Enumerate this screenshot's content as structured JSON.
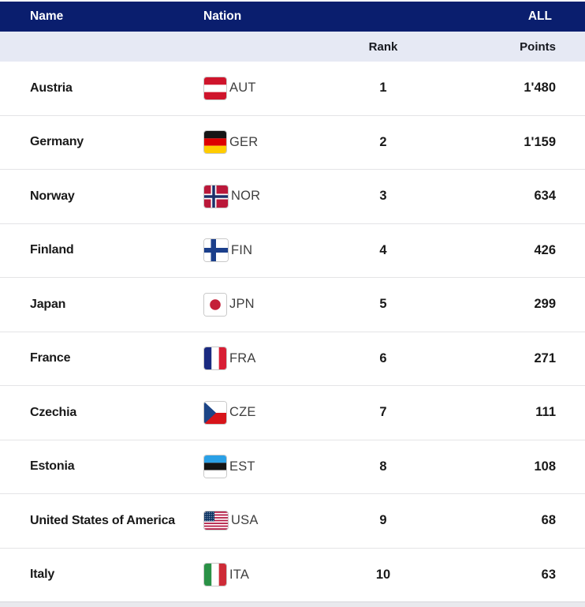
{
  "table": {
    "header": {
      "name": "Name",
      "nation": "Nation",
      "group": "ALL"
    },
    "subheader": {
      "rank": "Rank",
      "points": "Points"
    },
    "rows": [
      {
        "name": "Austria",
        "code": "AUT",
        "flag_icon": "flag-aut-icon",
        "rank": "1",
        "points": "1'480"
      },
      {
        "name": "Germany",
        "code": "GER",
        "flag_icon": "flag-ger-icon",
        "rank": "2",
        "points": "1'159"
      },
      {
        "name": "Norway",
        "code": "NOR",
        "flag_icon": "flag-nor-icon",
        "rank": "3",
        "points": "634"
      },
      {
        "name": "Finland",
        "code": "FIN",
        "flag_icon": "flag-fin-icon",
        "rank": "4",
        "points": "426"
      },
      {
        "name": "Japan",
        "code": "JPN",
        "flag_icon": "flag-jpn-icon",
        "rank": "5",
        "points": "299"
      },
      {
        "name": "France",
        "code": "FRA",
        "flag_icon": "flag-fra-icon",
        "rank": "6",
        "points": "271"
      },
      {
        "name": "Czechia",
        "code": "CZE",
        "flag_icon": "flag-cze-icon",
        "rank": "7",
        "points": "111"
      },
      {
        "name": "Estonia",
        "code": "EST",
        "flag_icon": "flag-est-icon",
        "rank": "8",
        "points": "108"
      },
      {
        "name": "United States of America",
        "code": "USA",
        "flag_icon": "flag-usa-icon",
        "rank": "9",
        "points": "68"
      },
      {
        "name": "Italy",
        "code": "ITA",
        "flag_icon": "flag-ita-icon",
        "rank": "10",
        "points": "63"
      }
    ]
  },
  "colors": {
    "header_bg": "#0a1e6e",
    "header_text": "#ffffff",
    "subheader_bg": "#e6e9f4",
    "row_separator": "#e4e4e6",
    "text_dark": "#191919"
  }
}
